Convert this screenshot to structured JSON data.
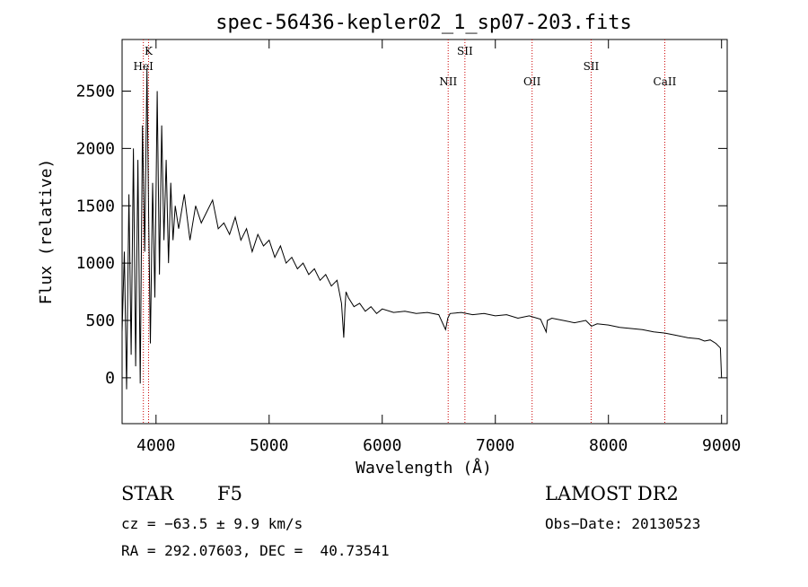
{
  "chart_data": {
    "type": "line",
    "title": "spec-56436-kepler02_1_sp07-203.fits",
    "xlabel": "Wavelength (Å)",
    "ylabel": "Flux (relative)",
    "xlim": [
      3700,
      9050
    ],
    "ylim": [
      -400,
      2950
    ],
    "x_ticks": [
      4000,
      5000,
      6000,
      7000,
      8000,
      9000
    ],
    "y_ticks": [
      0,
      500,
      1000,
      1500,
      2000,
      2500
    ],
    "grid": false,
    "legend": "none",
    "line_color": "#000000",
    "marker_color": "#cc0000",
    "series": [
      {
        "x": [
          3700,
          3720,
          3740,
          3760,
          3780,
          3800,
          3820,
          3840,
          3860,
          3880,
          3900,
          3920,
          3935,
          3950,
          3970,
          3990,
          4010,
          4030,
          4050,
          4070,
          4090,
          4110,
          4130,
          4150,
          4170,
          4200,
          4250,
          4300,
          4350,
          4400,
          4450,
          4500,
          4550,
          4600,
          4650,
          4700,
          4750,
          4800,
          4850,
          4900,
          4950,
          5000,
          5050,
          5100,
          5150,
          5200,
          5250,
          5300,
          5350,
          5400,
          5450,
          5500,
          5550,
          5600,
          5640,
          5660,
          5670,
          5680,
          5700,
          5750,
          5800,
          5850,
          5900,
          5950,
          6000,
          6100,
          6200,
          6300,
          6400,
          6500,
          6560,
          6580,
          6600,
          6700,
          6800,
          6900,
          7000,
          7100,
          7200,
          7300,
          7400,
          7450,
          7460,
          7500,
          7600,
          7700,
          7800,
          7850,
          7900,
          8000,
          8100,
          8200,
          8300,
          8400,
          8500,
          8600,
          8700,
          8800,
          8850,
          8900,
          8950,
          8990,
          9000
        ],
        "y": [
          400,
          1100,
          -100,
          1600,
          200,
          2000,
          100,
          1900,
          -50,
          2200,
          1100,
          2700,
          1400,
          300,
          1700,
          700,
          2500,
          900,
          2200,
          1200,
          1900,
          1000,
          1700,
          1200,
          1500,
          1300,
          1600,
          1200,
          1500,
          1350,
          1450,
          1550,
          1300,
          1350,
          1250,
          1400,
          1200,
          1300,
          1100,
          1250,
          1150,
          1200,
          1050,
          1150,
          1000,
          1050,
          950,
          1000,
          900,
          950,
          850,
          900,
          800,
          850,
          650,
          350,
          600,
          750,
          700,
          620,
          650,
          580,
          620,
          560,
          600,
          570,
          580,
          560,
          570,
          550,
          420,
          520,
          560,
          570,
          550,
          560,
          540,
          550,
          520,
          540,
          510,
          400,
          500,
          520,
          500,
          480,
          500,
          450,
          470,
          460,
          440,
          430,
          420,
          400,
          390,
          370,
          350,
          340,
          320,
          330,
          300,
          260,
          0
        ]
      }
    ],
    "line_markers": [
      {
        "label": "K",
        "x": 3934,
        "label_row": 0
      },
      {
        "label": "HeI",
        "x": 3888,
        "label_row": 1
      },
      {
        "label": "SII",
        "x": 6731,
        "label_row": 0
      },
      {
        "label": "NII",
        "x": 6583,
        "label_row": 2
      },
      {
        "label": "OII",
        "x": 7325,
        "label_row": 2
      },
      {
        "label": "SII",
        "x": 7847,
        "label_row": 1
      },
      {
        "label": "CaII",
        "x": 8498,
        "label_row": 2
      }
    ]
  },
  "info": {
    "object_class": "STAR",
    "subclass": "F5",
    "survey": "LAMOST DR2",
    "cz_line": "cz = −63.5 ± 9.9 km/s",
    "obs_date_line": "Obs−Date: 20130523",
    "coord_line": "RA = 292.07603, DEC =  40.73541"
  }
}
